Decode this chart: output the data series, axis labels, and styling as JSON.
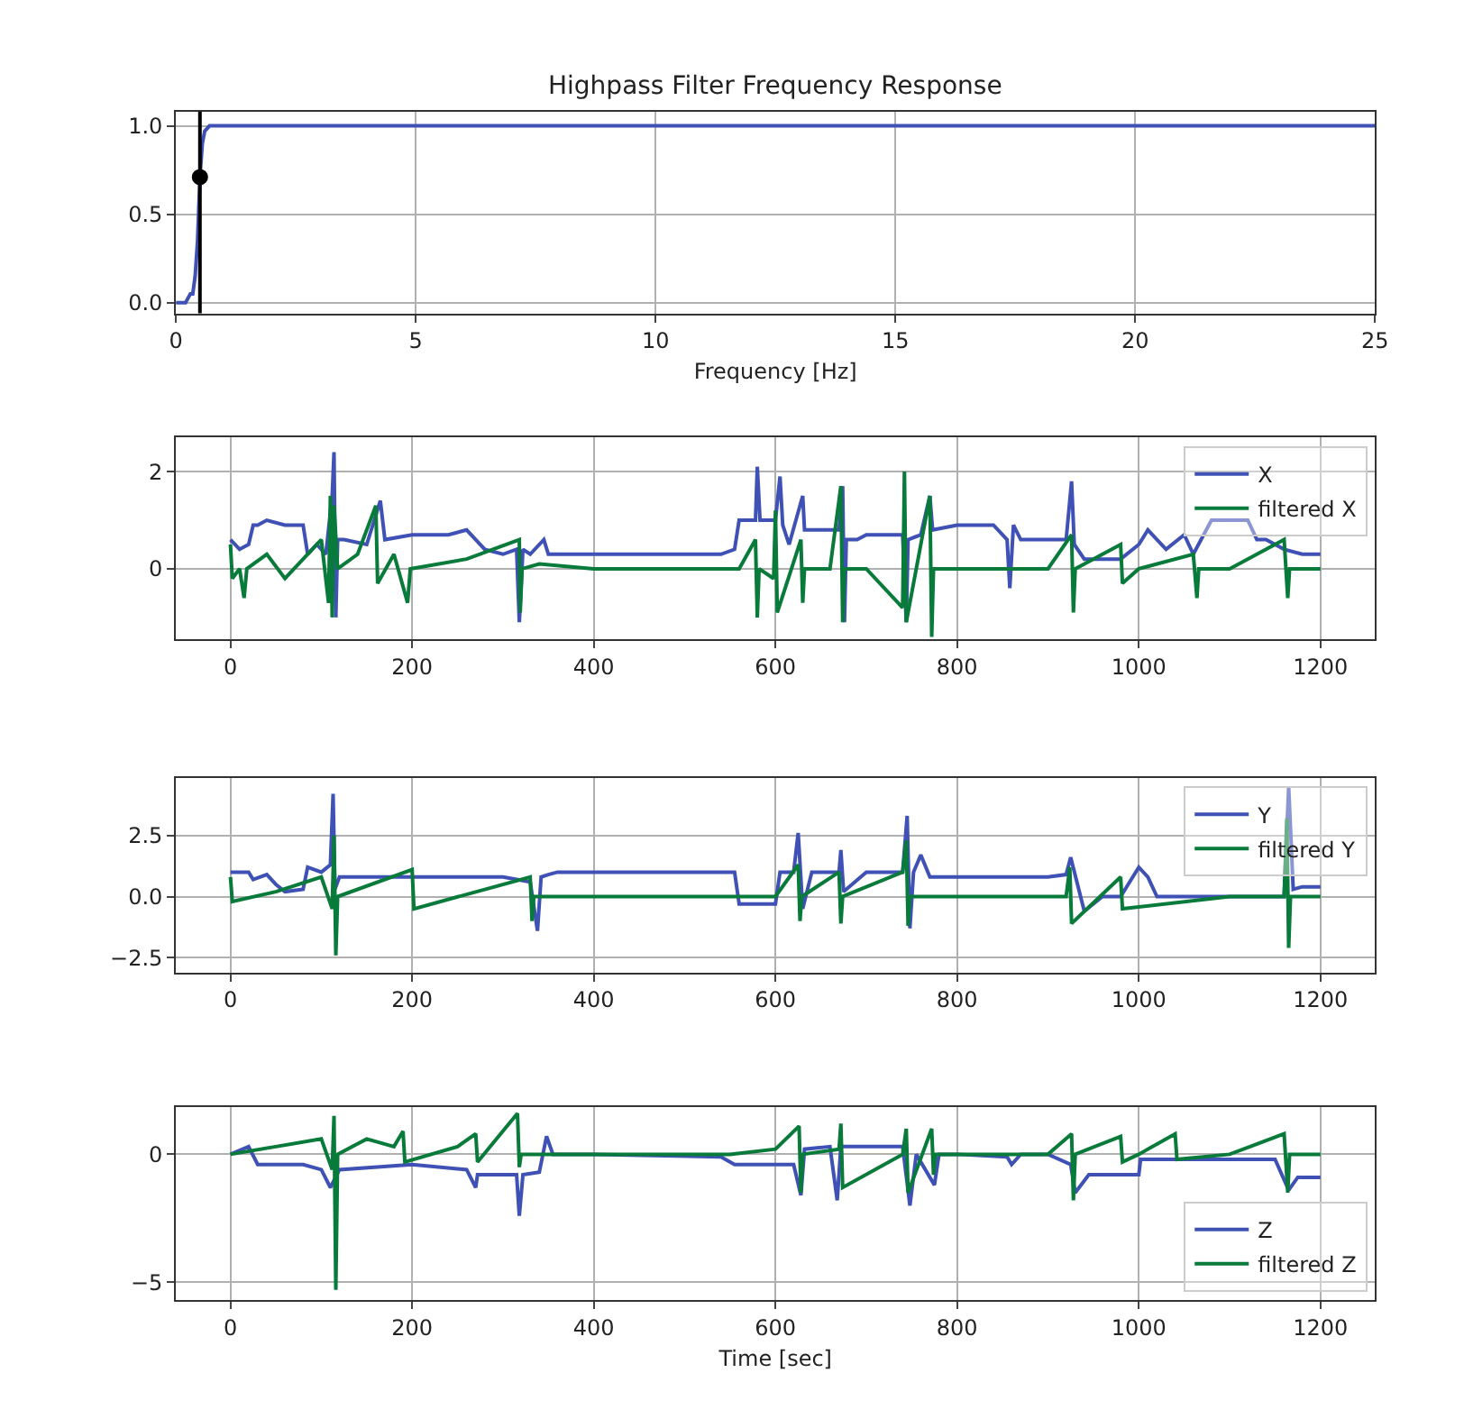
{
  "chart_data": [
    {
      "type": "line",
      "title": "Highpass Filter Frequency Response",
      "xlabel": "Frequency [Hz]",
      "xlim": [
        0,
        25
      ],
      "xticks": [
        0,
        5,
        10,
        15,
        20,
        25
      ],
      "ylim": [
        -0.06,
        1.08
      ],
      "yticks": [
        {
          "value": 0,
          "label": "0.0"
        },
        {
          "value": 0.5,
          "label": "0.5"
        },
        {
          "value": 1,
          "label": "1.0"
        }
      ],
      "grid": true,
      "marker": "none",
      "series": [
        {
          "color": "#3f51b5",
          "x": [
            0,
            0.2,
            0.3,
            0.35,
            0.4,
            0.45,
            0.5,
            0.55,
            0.6,
            0.7,
            1,
            25
          ],
          "values": [
            0,
            0,
            0.05,
            0.05,
            0.15,
            0.35,
            0.71,
            0.9,
            0.97,
            1.0,
            1.0,
            1.0
          ]
        },
        {
          "type": "scatter",
          "marker": "circle",
          "color": "#000000",
          "x": [
            0.5
          ],
          "values": [
            0.71
          ]
        }
      ],
      "ref_lines": [
        {
          "axis": "x",
          "value": 0.5,
          "color": "#000000"
        }
      ]
    },
    {
      "type": "line",
      "xlim": [
        -60,
        1260
      ],
      "xticks": [
        0,
        200,
        400,
        600,
        800,
        1000,
        1200
      ],
      "ylim": [
        -1.45,
        2.7
      ],
      "yticks": [
        0,
        2
      ],
      "grid": true,
      "legend": "top right",
      "series": [
        {
          "name": "X",
          "color": "#3f51b5",
          "x": [
            0,
            5,
            10,
            20,
            25,
            30,
            40,
            60,
            80,
            85,
            95,
            105,
            112,
            114,
            116,
            118,
            125,
            150,
            165,
            170,
            200,
            240,
            260,
            270,
            280,
            300,
            315,
            318,
            322,
            330,
            345,
            350,
            400,
            450,
            500,
            540,
            555,
            560,
            578,
            580,
            583,
            600,
            605,
            608,
            615,
            630,
            632,
            640,
            670,
            674,
            676,
            678,
            690,
            700,
            740,
            744,
            746,
            760,
            770,
            773,
            800,
            840,
            855,
            858,
            862,
            870,
            920,
            926,
            929,
            940,
            980,
            1000,
            1010,
            1030,
            1050,
            1060,
            1080,
            1120,
            1130,
            1140,
            1160,
            1180,
            1200
          ],
          "values": [
            0.6,
            0.5,
            0.4,
            0.5,
            0.9,
            0.9,
            1.0,
            0.9,
            0.9,
            0.3,
            0.5,
            0.3,
            1.5,
            2.4,
            -1.0,
            0.6,
            0.6,
            0.5,
            1.4,
            0.6,
            0.7,
            0.7,
            0.8,
            0.6,
            0.4,
            0.3,
            0.4,
            -1.1,
            0.4,
            0.3,
            0.6,
            0.3,
            0.3,
            0.3,
            0.3,
            0.3,
            0.4,
            1.0,
            1.0,
            2.1,
            1.0,
            1.0,
            1.9,
            0.9,
            0.5,
            1.5,
            0.8,
            0.8,
            0.8,
            1.7,
            -1.1,
            0.6,
            0.6,
            0.7,
            0.7,
            -1.1,
            0.6,
            0.7,
            1.5,
            0.8,
            0.9,
            0.9,
            0.6,
            -0.4,
            0.9,
            0.6,
            0.6,
            1.8,
            0.5,
            0.2,
            0.2,
            0.5,
            0.8,
            0.4,
            0.7,
            0.3,
            1.0,
            1.0,
            0.6,
            0.6,
            0.4,
            0.3,
            0.3
          ]
        },
        {
          "name": "filtered X",
          "color": "#087a3a",
          "x": [
            0,
            2,
            10,
            15,
            18,
            40,
            60,
            100,
            108,
            110,
            112,
            114,
            118,
            140,
            160,
            162,
            180,
            195,
            198,
            260,
            318,
            319,
            321,
            340,
            400,
            500,
            560,
            578,
            580,
            582,
            598,
            600,
            602,
            628,
            630,
            632,
            660,
            672,
            674,
            676,
            700,
            740,
            742,
            744,
            770,
            772,
            774,
            800,
            900,
            926,
            928,
            930,
            980,
            982,
            1000,
            1060,
            1064,
            1066,
            1100,
            1160,
            1164,
            1166,
            1200
          ],
          "values": [
            0.5,
            -0.2,
            0,
            -0.6,
            0,
            0.3,
            -0.2,
            0.6,
            -0.7,
            1.5,
            -1.0,
            1.3,
            0,
            0.3,
            1.3,
            -0.3,
            0.3,
            -0.7,
            0,
            0.2,
            0.6,
            -0.9,
            0,
            0.1,
            0,
            0,
            0,
            0.6,
            -1.0,
            0,
            -0.2,
            1.2,
            -0.9,
            0.6,
            -0.7,
            0,
            0,
            1.7,
            -1.1,
            0,
            0,
            -0.8,
            2.0,
            -1.1,
            1.5,
            -1.4,
            0,
            0,
            0,
            0.7,
            -0.9,
            0,
            0.5,
            -0.3,
            0,
            0.3,
            -0.6,
            0,
            0,
            0.6,
            -0.6,
            0,
            0
          ]
        }
      ]
    },
    {
      "type": "line",
      "xlim": [
        -60,
        1260
      ],
      "xticks": [
        0,
        200,
        400,
        600,
        800,
        1000,
        1200
      ],
      "ylim": [
        -3.1,
        4.85
      ],
      "yticks": [
        {
          "value": -2.5,
          "label": "−2.5"
        },
        {
          "value": 0,
          "label": "0.0"
        },
        {
          "value": 2.5,
          "label": "2.5"
        }
      ],
      "grid": true,
      "legend": "top right",
      "series": [
        {
          "name": "Y",
          "color": "#3f51b5",
          "x": [
            0,
            20,
            25,
            40,
            50,
            60,
            80,
            85,
            100,
            110,
            113,
            115,
            120,
            200,
            300,
            330,
            338,
            342,
            350,
            360,
            450,
            555,
            560,
            600,
            605,
            620,
            625,
            630,
            640,
            670,
            672,
            675,
            700,
            740,
            745,
            748,
            752,
            760,
            770,
            800,
            900,
            920,
            925,
            940,
            960,
            980,
            1000,
            1010,
            1020,
            1100,
            1160,
            1165,
            1170,
            1180,
            1200
          ],
          "values": [
            1.0,
            1.0,
            0.7,
            0.9,
            0.5,
            0.2,
            0.3,
            1.2,
            1.0,
            1.3,
            4.2,
            0.3,
            0.8,
            0.8,
            0.8,
            0.6,
            -1.4,
            0.8,
            0.9,
            1.0,
            1.0,
            1.0,
            -0.3,
            -0.3,
            1.0,
            1.0,
            2.6,
            -0.5,
            1.0,
            1.0,
            1.9,
            0.2,
            1.0,
            1.0,
            3.3,
            -1.3,
            1.0,
            1.7,
            0.8,
            0.8,
            0.8,
            0.9,
            1.6,
            -0.6,
            0.0,
            0.0,
            1.2,
            0.8,
            0.0,
            0.0,
            0.0,
            4.5,
            0.3,
            0.4,
            0.4
          ]
        },
        {
          "name": "filtered Y",
          "color": "#087a3a",
          "x": [
            0,
            2,
            50,
            100,
            112,
            114,
            116,
            118,
            200,
            202,
            330,
            332,
            334,
            400,
            600,
            625,
            627,
            629,
            670,
            672,
            674,
            740,
            744,
            746,
            748,
            800,
            920,
            924,
            926,
            980,
            982,
            1100,
            1160,
            1163,
            1165,
            1167,
            1200
          ],
          "values": [
            0.8,
            -0.2,
            0.2,
            0.8,
            -0.5,
            2.5,
            -2.4,
            0,
            1.1,
            -0.5,
            0.8,
            -1.0,
            0,
            0,
            0,
            1.3,
            -1.0,
            0,
            1.0,
            -1.1,
            0,
            1.0,
            2.3,
            -1.2,
            0,
            0,
            0,
            1.2,
            -1.1,
            0.8,
            -0.5,
            0,
            0,
            3.2,
            -2.1,
            0,
            0
          ]
        }
      ]
    },
    {
      "type": "line",
      "xlabel": "Time [sec]",
      "xlim": [
        -60,
        1260
      ],
      "xticks": [
        0,
        200,
        400,
        600,
        800,
        1000,
        1200
      ],
      "ylim": [
        -5.7,
        1.83
      ],
      "yticks": [
        {
          "value": -5,
          "label": "−5"
        },
        0
      ],
      "grid": true,
      "legend": "bottom right",
      "series": [
        {
          "name": "Z",
          "color": "#3f51b5",
          "x": [
            0,
            20,
            30,
            80,
            100,
            110,
            120,
            200,
            260,
            270,
            272,
            280,
            315,
            318,
            322,
            340,
            348,
            355,
            400,
            540,
            555,
            620,
            628,
            632,
            660,
            668,
            672,
            676,
            700,
            740,
            748,
            755,
            775,
            780,
            800,
            855,
            860,
            870,
            900,
            925,
            930,
            945,
            1000,
            1002,
            1020,
            1150,
            1165,
            1175,
            1200
          ],
          "values": [
            0,
            0.3,
            -0.4,
            -0.4,
            -0.6,
            -1.3,
            -0.6,
            -0.4,
            -0.6,
            -1.3,
            -0.8,
            -0.8,
            -0.8,
            -2.4,
            -0.8,
            -0.7,
            0.7,
            0,
            0,
            -0.1,
            -0.4,
            -0.4,
            -1.6,
            0.2,
            0.3,
            -1.8,
            0.3,
            0.3,
            0.3,
            0.3,
            -2.0,
            0,
            -1.2,
            0,
            0,
            -0.1,
            -0.4,
            0,
            0,
            -0.4,
            -1.5,
            -0.8,
            -0.8,
            -0.2,
            -0.2,
            -0.2,
            -1.4,
            -0.9,
            -0.9
          ]
        },
        {
          "name": "filtered Z",
          "color": "#087a3a",
          "x": [
            0,
            50,
            100,
            112,
            114,
            116,
            118,
            150,
            180,
            190,
            192,
            250,
            270,
            272,
            316,
            318,
            320,
            400,
            550,
            600,
            626,
            628,
            630,
            670,
            672,
            674,
            740,
            744,
            746,
            772,
            774,
            776,
            800,
            900,
            926,
            928,
            930,
            980,
            982,
            1000,
            1040,
            1042,
            1100,
            1160,
            1164,
            1166,
            1200
          ],
          "values": [
            0,
            0.3,
            0.6,
            -0.6,
            1.5,
            -5.3,
            0,
            0.6,
            0.3,
            0.9,
            -0.3,
            0.3,
            0.8,
            -0.3,
            1.6,
            -0.5,
            0,
            0,
            0,
            0.2,
            1.1,
            -1.5,
            0,
            0.2,
            1.2,
            -1.3,
            0,
            1.0,
            -1.5,
            1.0,
            -0.8,
            0,
            0,
            0,
            0.8,
            -1.8,
            0,
            0.7,
            -0.3,
            0,
            0.8,
            -0.2,
            0,
            0.8,
            -1.5,
            0,
            0
          ]
        }
      ]
    }
  ]
}
